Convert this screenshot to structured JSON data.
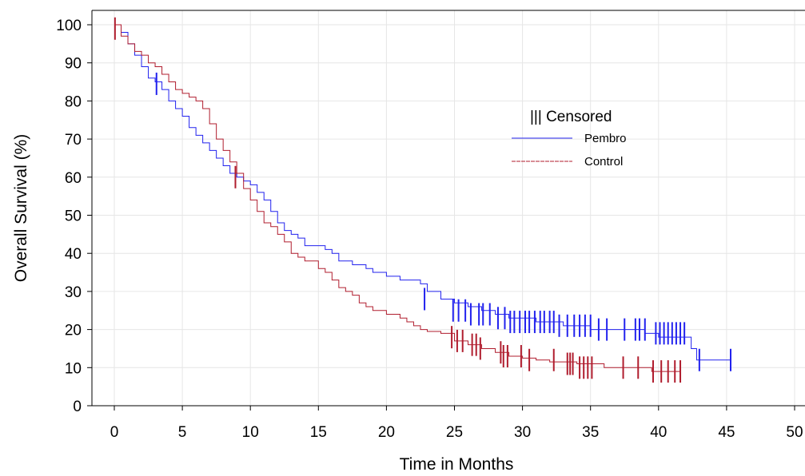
{
  "chart_data": {
    "type": "line",
    "subtype": "kaplan-meier step",
    "xlabel": "Time in Months",
    "ylabel": "Overall Survival (%)",
    "xlim": [
      0,
      50
    ],
    "ylim": [
      0,
      100
    ],
    "x_ticks": [
      0,
      5,
      10,
      15,
      20,
      25,
      30,
      35,
      40,
      45,
      50
    ],
    "y_ticks": [
      0,
      10,
      20,
      30,
      40,
      50,
      60,
      70,
      80,
      90,
      100
    ],
    "grid": true,
    "legend": {
      "position": "upper-right inside plot",
      "title": "||| Censored",
      "entries": [
        {
          "label": "Pembro",
          "color": "#2222ee",
          "style": "solid"
        },
        {
          "label": "Control",
          "color": "#b01d2e",
          "style": "dashed"
        }
      ]
    },
    "series": [
      {
        "name": "Pembro",
        "color": "#2222ee",
        "steps": [
          [
            0,
            100
          ],
          [
            0.5,
            98
          ],
          [
            1,
            95
          ],
          [
            1.5,
            92
          ],
          [
            2,
            89
          ],
          [
            2.5,
            86
          ],
          [
            3,
            85
          ],
          [
            3.5,
            83
          ],
          [
            4,
            80
          ],
          [
            4.5,
            78
          ],
          [
            5,
            76
          ],
          [
            5.5,
            73
          ],
          [
            6,
            71
          ],
          [
            6.5,
            69
          ],
          [
            7,
            67
          ],
          [
            7.5,
            65
          ],
          [
            8,
            63
          ],
          [
            8.5,
            61
          ],
          [
            9,
            60
          ],
          [
            9.5,
            59
          ],
          [
            10,
            58
          ],
          [
            10.5,
            56
          ],
          [
            11,
            54
          ],
          [
            11.5,
            51
          ],
          [
            12,
            48
          ],
          [
            12.5,
            46
          ],
          [
            13,
            45
          ],
          [
            13.5,
            44
          ],
          [
            14,
            42
          ],
          [
            15,
            42
          ],
          [
            15.5,
            41
          ],
          [
            16,
            40
          ],
          [
            16.5,
            38
          ],
          [
            17.5,
            37
          ],
          [
            18.5,
            36
          ],
          [
            19,
            35
          ],
          [
            20,
            34
          ],
          [
            21,
            33
          ],
          [
            22.5,
            32
          ],
          [
            23,
            30
          ],
          [
            24,
            28
          ],
          [
            25,
            27
          ],
          [
            26,
            26
          ],
          [
            27,
            25
          ],
          [
            28,
            24
          ],
          [
            29,
            23
          ],
          [
            31,
            22
          ],
          [
            33,
            21
          ],
          [
            35,
            20
          ],
          [
            37,
            20
          ],
          [
            39,
            19
          ],
          [
            40,
            18
          ],
          [
            42.3,
            18
          ],
          [
            42.4,
            15
          ],
          [
            42.8,
            12
          ],
          [
            45.3,
            12
          ]
        ],
        "censored": [
          [
            3.1,
            84.5
          ],
          [
            22.8,
            28
          ],
          [
            24.9,
            25
          ],
          [
            25.3,
            25
          ],
          [
            25.8,
            25
          ],
          [
            26.2,
            24
          ],
          [
            26.8,
            24
          ],
          [
            27.1,
            24
          ],
          [
            27.6,
            24
          ],
          [
            28.2,
            23
          ],
          [
            28.7,
            23
          ],
          [
            29.1,
            22
          ],
          [
            29.4,
            22
          ],
          [
            29.8,
            22
          ],
          [
            30.2,
            22
          ],
          [
            30.5,
            22
          ],
          [
            30.9,
            22
          ],
          [
            31.3,
            22
          ],
          [
            31.6,
            22
          ],
          [
            32.0,
            22
          ],
          [
            32.3,
            22
          ],
          [
            32.7,
            21
          ],
          [
            33.3,
            21
          ],
          [
            33.8,
            21
          ],
          [
            34.2,
            21
          ],
          [
            34.6,
            21
          ],
          [
            35.0,
            21
          ],
          [
            35.6,
            20
          ],
          [
            36.2,
            20
          ],
          [
            37.5,
            20
          ],
          [
            38.3,
            20
          ],
          [
            38.6,
            20
          ],
          [
            39.0,
            20
          ],
          [
            39.8,
            19
          ],
          [
            40.1,
            19
          ],
          [
            40.4,
            19
          ],
          [
            40.7,
            19
          ],
          [
            41.0,
            19
          ],
          [
            41.3,
            19
          ],
          [
            41.6,
            19
          ],
          [
            41.9,
            19
          ],
          [
            43.0,
            12
          ],
          [
            45.3,
            12
          ]
        ]
      },
      {
        "name": "Control",
        "color": "#b01d2e",
        "steps": [
          [
            0,
            100
          ],
          [
            0.5,
            97
          ],
          [
            1,
            95
          ],
          [
            1.5,
            93
          ],
          [
            2,
            92
          ],
          [
            2.5,
            90
          ],
          [
            3,
            89
          ],
          [
            3.5,
            87
          ],
          [
            4,
            85
          ],
          [
            4.5,
            83
          ],
          [
            5,
            82
          ],
          [
            5.5,
            81
          ],
          [
            6,
            80
          ],
          [
            6.5,
            78
          ],
          [
            7,
            74
          ],
          [
            7.5,
            70
          ],
          [
            8,
            67
          ],
          [
            8.5,
            64
          ],
          [
            9,
            61
          ],
          [
            9.5,
            57
          ],
          [
            10,
            54
          ],
          [
            10.5,
            51
          ],
          [
            11,
            48
          ],
          [
            11.5,
            47
          ],
          [
            12,
            45
          ],
          [
            12.5,
            43
          ],
          [
            13,
            40
          ],
          [
            13.5,
            39
          ],
          [
            14,
            38
          ],
          [
            15,
            36
          ],
          [
            15.5,
            35
          ],
          [
            16,
            33
          ],
          [
            16.5,
            31
          ],
          [
            17,
            30
          ],
          [
            17.5,
            29
          ],
          [
            18,
            27
          ],
          [
            18.5,
            26
          ],
          [
            19,
            25
          ],
          [
            20,
            24
          ],
          [
            21,
            23
          ],
          [
            21.5,
            22
          ],
          [
            22,
            21
          ],
          [
            22.5,
            20
          ],
          [
            23,
            19.5
          ],
          [
            24,
            19
          ],
          [
            25,
            17
          ],
          [
            26,
            16
          ],
          [
            27,
            15
          ],
          [
            28,
            14
          ],
          [
            29,
            13
          ],
          [
            30,
            12.5
          ],
          [
            31,
            12
          ],
          [
            32,
            11.5
          ],
          [
            34,
            11
          ],
          [
            36,
            10
          ],
          [
            39,
            10
          ],
          [
            39.5,
            9
          ],
          [
            41.6,
            9
          ]
        ],
        "censored": [
          [
            0.05,
            99
          ],
          [
            8.9,
            60
          ],
          [
            24.8,
            18
          ],
          [
            25.2,
            17
          ],
          [
            25.6,
            17
          ],
          [
            26.3,
            16
          ],
          [
            26.6,
            16
          ],
          [
            26.9,
            15
          ],
          [
            28.4,
            14
          ],
          [
            28.6,
            13
          ],
          [
            28.9,
            13
          ],
          [
            29.9,
            13
          ],
          [
            30.5,
            12
          ],
          [
            32.3,
            12
          ],
          [
            33.3,
            11
          ],
          [
            33.5,
            11
          ],
          [
            33.7,
            11
          ],
          [
            34.2,
            10
          ],
          [
            34.5,
            10
          ],
          [
            34.8,
            10
          ],
          [
            35.1,
            10
          ],
          [
            37.4,
            10
          ],
          [
            38.5,
            10
          ],
          [
            39.6,
            9
          ],
          [
            40.2,
            9
          ],
          [
            40.7,
            9
          ],
          [
            41.2,
            9
          ],
          [
            41.6,
            9
          ]
        ]
      }
    ]
  }
}
